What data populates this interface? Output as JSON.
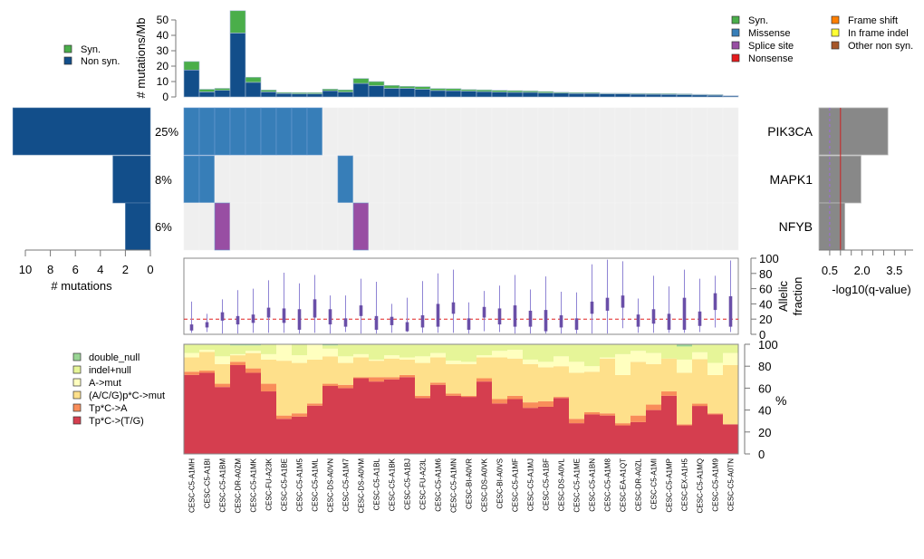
{
  "chart_data": [
    {
      "id": "mutation_rate",
      "type": "bar",
      "stacked": true,
      "ylabel": "# mutations/Mb",
      "yticks": [
        0,
        10,
        20,
        30,
        40,
        50
      ],
      "ylim": [
        0,
        56
      ],
      "categories": [
        "CESC-C5-A1MH",
        "CESC-C5-A1BI",
        "CESC-C5-A1BM",
        "CESC-DR-A0ZM",
        "CESC-C5-A1MK",
        "CESC-FU-A23K",
        "CESC-C5-A1BE",
        "CESC-C5-A1M5",
        "CESC-C5-A1ML",
        "CESC-DS-A0VN",
        "CESC-C5-A1M7",
        "CESC-DS-A0VM",
        "CESC-C5-A1BL",
        "CESC-C5-A1BK",
        "CESC-C5-A1BJ",
        "CESC-FU-A23L",
        "CESC-C5-A1M6",
        "CESC-C5-A1MN",
        "CESC-BI-A0VR",
        "CESC-DS-A0VK",
        "CESC-BI-A0VS",
        "CESC-C5-A1MF",
        "CESC-C5-A1MJ",
        "CESC-C5-A1BF",
        "CESC-DS-A0VL",
        "CESC-C5-A1ME",
        "CESC-C5-A1BN",
        "CESC-C5-A1M8",
        "CESC-EA-A1QT",
        "CESC-DR-A0ZL",
        "CESC-C5-A1MI",
        "CESC-C5-A1MP",
        "CESC-EX-A1H5",
        "CESC-C5-A1MQ",
        "CESC-C5-A1M9",
        "CESC-C5-A0TN"
      ],
      "series": [
        {
          "name": "Non syn.",
          "color": "#124e8a",
          "values": [
            17.5,
            3.3,
            4.3,
            41.5,
            9.5,
            3.3,
            2.2,
            2.0,
            2.0,
            4.0,
            3.2,
            8.8,
            7.3,
            5.6,
            5.6,
            5.0,
            4.2,
            4.0,
            3.8,
            3.5,
            3.2,
            3.0,
            3.0,
            2.6,
            2.5,
            2.2,
            2.2,
            2.0,
            2.0,
            1.8,
            1.7,
            1.6,
            1.5,
            1.3,
            1.1,
            0.7
          ]
        },
        {
          "name": "Syn.",
          "color": "#4aae4a",
          "values": [
            5.5,
            1.7,
            1.3,
            14.5,
            3.3,
            1.2,
            0.7,
            0.8,
            0.8,
            1.1,
            1.4,
            3.2,
            2.7,
            1.9,
            1.3,
            1.7,
            1.3,
            1.4,
            1.0,
            1.1,
            1.1,
            1.1,
            0.9,
            0.9,
            0.6,
            0.6,
            0.6,
            0.4,
            0.4,
            0.5,
            0.5,
            0.5,
            0.5,
            0.4,
            0.4,
            0.1
          ]
        }
      ]
    },
    {
      "id": "oncoprint",
      "type": "heatmap",
      "genes": [
        "PIK3CA",
        "MAPK1",
        "NFYB"
      ],
      "percentages": [
        "25%",
        "8%",
        "6%"
      ],
      "cells": [
        [
          "Missense",
          "Missense",
          "Missense",
          "Missense",
          "Missense",
          "Missense",
          "Missense",
          "Missense",
          "Missense",
          "",
          "",
          "",
          "",
          "",
          "",
          "",
          "",
          "",
          "",
          "",
          "",
          "",
          "",
          "",
          "",
          "",
          "",
          "",
          "",
          "",
          "",
          "",
          "",
          "",
          "",
          ""
        ],
        [
          "Missense",
          "Missense",
          "",
          "",
          "",
          "",
          "",
          "",
          "",
          "",
          "Missense",
          "",
          "",
          "",
          "",
          "",
          "",
          "",
          "",
          "",
          "",
          "",
          "",
          "",
          "",
          "",
          "",
          "",
          "",
          "",
          "",
          "",
          "",
          "",
          "",
          ""
        ],
        [
          "",
          "",
          "Splice site",
          "",
          "",
          "",
          "",
          "",
          "",
          "",
          "",
          "Splice site",
          "",
          "",
          "",
          "",
          "",
          "",
          "",
          "",
          "",
          "",
          "",
          "",
          "",
          "",
          "",
          "",
          "",
          "",
          "",
          "",
          "",
          "",
          "",
          ""
        ]
      ],
      "mutation_type_colors": {
        "Syn.": "#4aae4a",
        "Missense": "#377eb8",
        "Splice site": "#984ea3",
        "Nonsense": "#e41a1c",
        "Frame shift": "#ff7f00",
        "In frame indel": "#ffff33",
        "Other non syn.": "#a65628",
        "none": "#efefef"
      }
    },
    {
      "id": "gene_counts",
      "type": "bar",
      "orientation": "horizontal",
      "xlabel": "# mutations",
      "xticks": [
        10,
        8,
        6,
        4,
        2,
        0
      ],
      "xlim": [
        11,
        0
      ],
      "categories": [
        "PIK3CA",
        "MAPK1",
        "NFYB"
      ],
      "values": [
        11,
        3,
        2
      ]
    },
    {
      "id": "qvalues",
      "type": "bar",
      "orientation": "horizontal",
      "xlabel": "-log10(q-value)",
      "xticks": [
        0.5,
        2.0,
        3.5
      ],
      "minor_tick_step": 0.5,
      "xlim": [
        0,
        4.0
      ],
      "categories": [
        "PIK3CA",
        "MAPK1",
        "NFYB"
      ],
      "values": [
        3.2,
        1.95,
        1.2
      ],
      "threshold_solid": 1.0,
      "threshold_dashed": 0.5
    },
    {
      "id": "allelic_fraction",
      "type": "box",
      "ylabel": "Allelic fraction",
      "yticks": [
        0,
        20,
        40,
        60,
        80,
        100
      ],
      "ylim": [
        0,
        100
      ],
      "reference_line": 20,
      "boxes": [
        {
          "min": 2,
          "q1": 5,
          "q3": 13,
          "max": 43
        },
        {
          "min": 3,
          "q1": 9,
          "q3": 16,
          "max": 27
        },
        {
          "min": 1,
          "q1": 18,
          "q3": 29,
          "max": 46
        },
        {
          "min": 1,
          "q1": 13,
          "q3": 24,
          "max": 58
        },
        {
          "min": 2,
          "q1": 15,
          "q3": 26,
          "max": 60
        },
        {
          "min": 2,
          "q1": 22,
          "q3": 35,
          "max": 71
        },
        {
          "min": 2,
          "q1": 15,
          "q3": 34,
          "max": 81
        },
        {
          "min": 1,
          "q1": 6,
          "q3": 33,
          "max": 67
        },
        {
          "min": 2,
          "q1": 22,
          "q3": 46,
          "max": 78
        },
        {
          "min": 1,
          "q1": 13,
          "q3": 33,
          "max": 51
        },
        {
          "min": 3,
          "q1": 10,
          "q3": 21,
          "max": 51
        },
        {
          "min": 1,
          "q1": 24,
          "q3": 38,
          "max": 73
        },
        {
          "min": 1,
          "q1": 6,
          "q3": 24,
          "max": 69
        },
        {
          "min": 2,
          "q1": 12,
          "q3": 23,
          "max": 40
        },
        {
          "min": 3,
          "q1": 4,
          "q3": 16,
          "max": 48
        },
        {
          "min": 2,
          "q1": 9,
          "q3": 25,
          "max": 70
        },
        {
          "min": 2,
          "q1": 10,
          "q3": 40,
          "max": 80
        },
        {
          "min": 2,
          "q1": 27,
          "q3": 42,
          "max": 85
        },
        {
          "min": 1,
          "q1": 6,
          "q3": 21,
          "max": 42
        },
        {
          "min": 4,
          "q1": 22,
          "q3": 36,
          "max": 57
        },
        {
          "min": 3,
          "q1": 13,
          "q3": 34,
          "max": 64
        },
        {
          "min": 1,
          "q1": 10,
          "q3": 38,
          "max": 78
        },
        {
          "min": 1,
          "q1": 10,
          "q3": 31,
          "max": 59
        },
        {
          "min": 1,
          "q1": 4,
          "q3": 32,
          "max": 76
        },
        {
          "min": 1,
          "q1": 9,
          "q3": 25,
          "max": 56
        },
        {
          "min": 1,
          "q1": 6,
          "q3": 21,
          "max": 55
        },
        {
          "min": 1,
          "q1": 27,
          "q3": 43,
          "max": 92
        },
        {
          "min": 1,
          "q1": 31,
          "q3": 48,
          "max": 98
        },
        {
          "min": 8,
          "q1": 35,
          "q3": 51,
          "max": 96
        },
        {
          "min": 2,
          "q1": 10,
          "q3": 26,
          "max": 47
        },
        {
          "min": 2,
          "q1": 14,
          "q3": 33,
          "max": 77
        },
        {
          "min": 2,
          "q1": 6,
          "q3": 27,
          "max": 63
        },
        {
          "min": 2,
          "q1": 6,
          "q3": 48,
          "max": 85
        },
        {
          "min": 3,
          "q1": 11,
          "q3": 30,
          "max": 73
        },
        {
          "min": 9,
          "q1": 32,
          "q3": 54,
          "max": 77
        },
        {
          "min": 3,
          "q1": 10,
          "q3": 50,
          "max": 97
        }
      ]
    },
    {
      "id": "mutation_spectrum",
      "type": "bar",
      "stacked": true,
      "ylabel": "%",
      "yticks": [
        0,
        20,
        40,
        60,
        80,
        100
      ],
      "ylim": [
        0,
        100
      ],
      "series": [
        {
          "name": "Tp*C->(T/G)",
          "color": "#d53e4f",
          "values": [
            72,
            74,
            61,
            81,
            74,
            57,
            32,
            34,
            44,
            62,
            60,
            69,
            66,
            68,
            70,
            51,
            63,
            53,
            52,
            66,
            46,
            50,
            42,
            43,
            51,
            28,
            36,
            35,
            26,
            29,
            40,
            53,
            26,
            42,
            36,
            27
          ]
        },
        {
          "name": "Tp*C->A",
          "color": "#f98d5a",
          "values": [
            3,
            2,
            3,
            3,
            4,
            7,
            3,
            3,
            2,
            2,
            3,
            1,
            4,
            2,
            2,
            2,
            2,
            2,
            1,
            3,
            4,
            3,
            5,
            5,
            1,
            4,
            2,
            2,
            2,
            6,
            5,
            4,
            1,
            2,
            1,
            0
          ]
        },
        {
          "name": "(A/C/G)p*C->mut",
          "color": "#fee08b",
          "values": [
            13,
            17,
            18,
            6,
            14,
            22,
            50,
            46,
            40,
            25,
            20,
            18,
            15,
            17,
            14,
            30,
            23,
            27,
            29,
            19,
            38,
            34,
            35,
            31,
            28,
            42,
            37,
            50,
            44,
            49,
            37,
            30,
            47,
            39,
            35,
            54
          ]
        },
        {
          "name": "A->mut",
          "color": "#ffffbf",
          "values": [
            4,
            2,
            7,
            1,
            2,
            5,
            15,
            7,
            14,
            7,
            6,
            3,
            1,
            3,
            2,
            6,
            4,
            3,
            2,
            2,
            6,
            8,
            4,
            5,
            9,
            10,
            5,
            1,
            19,
            10,
            10,
            0,
            12,
            6,
            11,
            11
          ]
        },
        {
          "name": "indel+null",
          "color": "#e6f598",
          "values": [
            8,
            5,
            11,
            8,
            5,
            9,
            0,
            10,
            0,
            3,
            11,
            9,
            14,
            10,
            12,
            11,
            8,
            15,
            16,
            10,
            6,
            5,
            14,
            16,
            11,
            16,
            20,
            12,
            9,
            6,
            8,
            13,
            12,
            7,
            17,
            8
          ]
        },
        {
          "name": "double_null",
          "color": "#99d594",
          "values": [
            0,
            0,
            0,
            1,
            1,
            0,
            0,
            0,
            0,
            1,
            0,
            0,
            0,
            0,
            0,
            0,
            0,
            0,
            0,
            0,
            0,
            0,
            0,
            0,
            0,
            0,
            0,
            0,
            0,
            0,
            0,
            0,
            2,
            0,
            0,
            0
          ]
        }
      ]
    }
  ],
  "legends": {
    "mutation_rate": [
      {
        "label": "Syn.",
        "color": "#4aae4a"
      },
      {
        "label": "Non syn.",
        "color": "#124e8a"
      }
    ],
    "mutation_types": [
      {
        "label": "Syn.",
        "color": "#4aae4a"
      },
      {
        "label": "Missense",
        "color": "#377eb8"
      },
      {
        "label": "Splice site",
        "color": "#984ea3"
      },
      {
        "label": "Nonsense",
        "color": "#e41a1c"
      },
      {
        "label": "Frame shift",
        "color": "#ff7f00"
      },
      {
        "label": "In frame indel",
        "color": "#ffff33"
      },
      {
        "label": "Other non syn.",
        "color": "#a65628"
      }
    ],
    "spectrum": [
      {
        "label": "double_null",
        "color": "#99d594"
      },
      {
        "label": "indel+null",
        "color": "#e6f598"
      },
      {
        "label": "A->mut",
        "color": "#ffffbf"
      },
      {
        "label": "(A/C/G)p*C->mut",
        "color": "#fee08b"
      },
      {
        "label": "Tp*C->A",
        "color": "#f98d5a"
      },
      {
        "label": "Tp*C->(T/G)",
        "color": "#d53e4f"
      }
    ]
  },
  "axis_labels": {
    "mutation_rate_y": "# mutations/Mb",
    "gene_counts_x": "# mutations",
    "qvalue_x": "-log10(q-value)",
    "allelic_line1": "Allelic",
    "allelic_line2": "fraction",
    "spectrum_y": "%"
  }
}
